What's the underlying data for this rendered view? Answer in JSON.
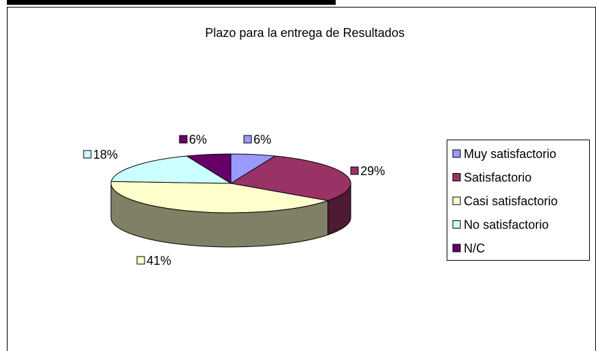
{
  "chart_data": {
    "type": "pie",
    "title": "Plazo para la entrega de Resultados",
    "categories": [
      "Muy satisfactorio",
      "Satisfactorio",
      "Casi satisfactorio",
      "No satisfactorio",
      "N/C"
    ],
    "values": [
      6,
      29,
      41,
      18,
      6
    ],
    "value_labels": [
      "6%",
      "29%",
      "41%",
      "18%",
      "6%"
    ],
    "colors": [
      "#9999ff",
      "#993366",
      "#ffffcc",
      "#ccffff",
      "#660066"
    ],
    "legend": "right"
  }
}
